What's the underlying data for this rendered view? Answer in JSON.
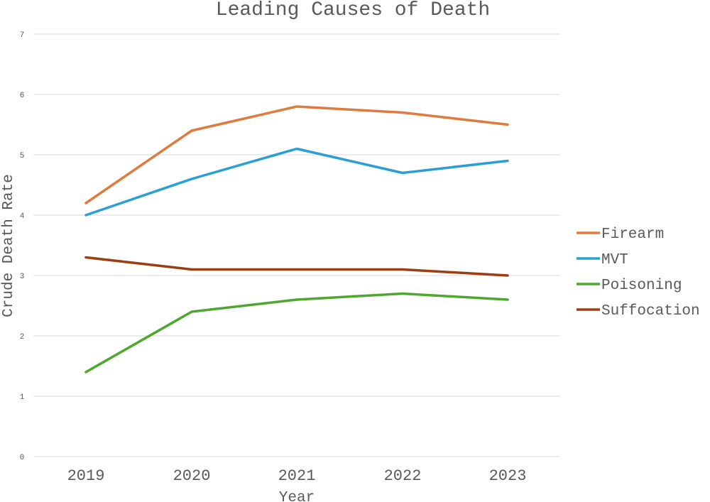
{
  "chart_data": {
    "type": "line",
    "title": "Leading Causes of Death",
    "xlabel": "Year",
    "ylabel": "Crude Death Rate",
    "categories": [
      "2019",
      "2020",
      "2021",
      "2022",
      "2023"
    ],
    "ylim": [
      0,
      7
    ],
    "yticks": [
      0,
      1,
      2,
      3,
      4,
      5,
      6,
      7
    ],
    "grid": true,
    "legend_position": "right",
    "series": [
      {
        "name": "Firearm",
        "color": "#e07b3f",
        "values": [
          4.2,
          5.4,
          5.8,
          5.7,
          5.5
        ]
      },
      {
        "name": "MVT",
        "color": "#2a9fd6",
        "values": [
          4.0,
          4.6,
          5.1,
          4.7,
          4.9
        ]
      },
      {
        "name": "Poisoning",
        "color": "#4ea72e",
        "values": [
          1.4,
          2.4,
          2.6,
          2.7,
          2.6
        ]
      },
      {
        "name": "Suffocation",
        "color": "#9c3d12",
        "values": [
          3.3,
          3.1,
          3.1,
          3.1,
          3.0
        ]
      }
    ]
  }
}
